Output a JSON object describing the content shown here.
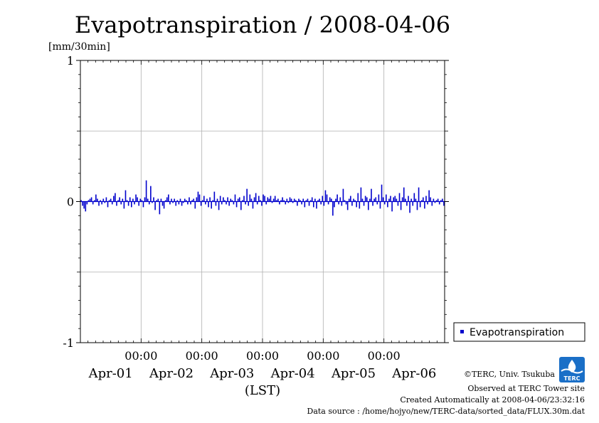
{
  "chart_data": {
    "type": "bar",
    "title": "Evapotranspiration / 2008-04-06",
    "ylabel": "[mm/30min]",
    "xlabel": "(LST)",
    "ylim": [
      -1,
      1
    ],
    "yticks": [
      "1",
      "0",
      "-1"
    ],
    "time_ticks": [
      "00:00",
      "00:00",
      "00:00",
      "00:00",
      "00:00"
    ],
    "date_labels": [
      "Apr-01",
      "Apr-02",
      "Apr-03",
      "Apr-04",
      "Apr-05",
      "Apr-06"
    ],
    "x_range_days": [
      -1,
      5
    ],
    "grid": true,
    "legend_position": "bottom-right",
    "series": [
      {
        "name": "Evapotranspiration",
        "color": "#0000cc",
        "values": [
          0.01,
          -0.03,
          -0.05,
          -0.07,
          -0.02,
          0.01,
          0.02,
          0.03,
          -0.02,
          0.01,
          0.05,
          0.02,
          -0.03,
          0.01,
          -0.02,
          0.02,
          -0.01,
          0.03,
          -0.04,
          0.01,
          0.02,
          -0.02,
          0.04,
          0.06,
          -0.03,
          0.01,
          0.03,
          -0.02,
          0.02,
          -0.05,
          0.08,
          0.01,
          -0.03,
          0.03,
          -0.04,
          0.02,
          -0.02,
          0.05,
          0.03,
          -0.03,
          0.02,
          0.01,
          -0.04,
          0.03,
          0.15,
          0.02,
          -0.02,
          0.11,
          -0.01,
          0.03,
          -0.06,
          0.01,
          0.02,
          -0.09,
          0.02,
          -0.03,
          -0.05,
          0.01,
          0.03,
          0.05,
          -0.02,
          0.02,
          -0.01,
          0.02,
          -0.03,
          0.01,
          -0.02,
          0.02,
          -0.03,
          -0.01,
          0.02,
          0.01,
          -0.02,
          0.03,
          -0.02,
          0.01,
          0.02,
          -0.05,
          0.03,
          0.07,
          0.05,
          -0.03,
          0.01,
          0.04,
          -0.02,
          0.02,
          -0.04,
          0.03,
          -0.05,
          0.01,
          0.07,
          -0.03,
          0.02,
          -0.06,
          0.04,
          -0.02,
          0.03,
          0.01,
          -0.02,
          0.03,
          -0.03,
          0.02,
          0.01,
          -0.02,
          0.05,
          -0.04,
          0.02,
          0.03,
          -0.06,
          0.01,
          0.04,
          -0.02,
          0.09,
          -0.03,
          0.05,
          0.02,
          -0.05,
          0.03,
          0.06,
          -0.02,
          0.04,
          0.01,
          -0.03,
          0.05,
          0.04,
          -0.02,
          0.03,
          0.02,
          0.04,
          -0.01,
          0.02,
          0.04,
          0.01,
          0.02,
          -0.02,
          0.01,
          0.03,
          0.01,
          -0.02,
          0.02,
          -0.01,
          0.03,
          0.02,
          -0.01,
          0.02,
          0.01,
          -0.03,
          0.02,
          0.01,
          -0.02,
          0.02,
          -0.04,
          0.01,
          0.02,
          -0.03,
          0.01,
          0.03,
          -0.04,
          0.02,
          -0.05,
          0.01,
          0.02,
          -0.02,
          0.04,
          -0.03,
          0.08,
          0.05,
          -0.02,
          0.03,
          0.02,
          -0.1,
          -0.04,
          0.02,
          0.05,
          -0.02,
          0.03,
          -0.03,
          0.09,
          0.01,
          -0.02,
          -0.06,
          0.02,
          0.04,
          -0.03,
          0.02,
          0.01,
          -0.04,
          0.06,
          -0.05,
          0.1,
          0.02,
          -0.03,
          0.04,
          0.03,
          -0.06,
          0.02,
          0.09,
          -0.03,
          0.02,
          0.03,
          -0.02,
          0.05,
          -0.05,
          0.12,
          0.03,
          -0.02,
          0.05,
          -0.04,
          0.02,
          0.04,
          -0.07,
          0.03,
          0.04,
          0.02,
          -0.03,
          0.06,
          -0.06,
          0.03,
          0.1,
          0.02,
          -0.03,
          0.04,
          -0.08,
          0.02,
          -0.03,
          0.06,
          0.02,
          -0.06,
          0.1,
          -0.04,
          0.01,
          0.03,
          -0.05,
          0.04,
          -0.02,
          0.08,
          0.03,
          -0.03,
          0.02,
          -0.01,
          0.01,
          0.02,
          -0.02,
          0.01,
          0.02,
          -0.03
        ]
      }
    ]
  },
  "footer": {
    "copyright": "©TERC, Univ. Tsukuba",
    "site": "Observed at TERC Tower site",
    "created": "Created Automatically at 2008-04-06/23:32:16",
    "source": "Data source : /home/hojyo/new/TERC-data/sorted_data/FLUX.30m.dat"
  },
  "logo": {
    "text": "TERC",
    "color": "#1a6fc7"
  }
}
